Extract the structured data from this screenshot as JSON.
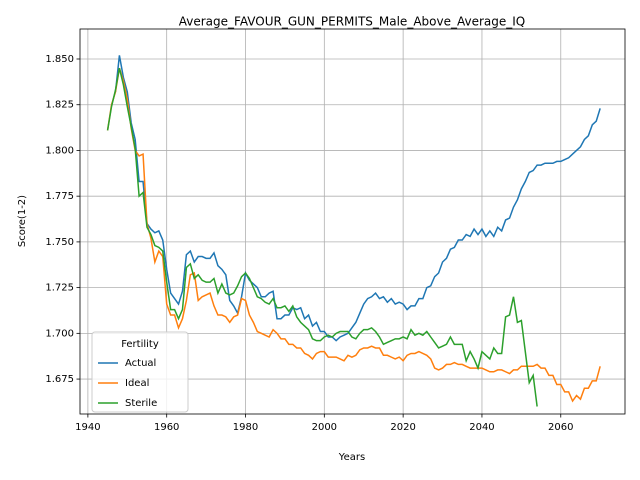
{
  "chart_data": {
    "type": "line",
    "title": "Average_FAVOUR_GUN_PERMITS_Male_Above_Average_IQ",
    "x_label": "Years",
    "y_label": "Score(1-2)",
    "legend_title": "Fertility",
    "legend": "lower left",
    "grid": true,
    "xlim": [
      1938,
      2076.3
    ],
    "ylim": [
      1.6559,
      1.8664
    ],
    "xticks": [
      1940,
      1960,
      1980,
      2000,
      2020,
      2040,
      2060
    ],
    "yticks": [
      1.675,
      {
        "value": 1.7,
        "label": "1.700"
      },
      1.725,
      {
        "value": 1.75,
        "label": "1.750"
      },
      1.775,
      {
        "value": 1.8,
        "label": "1.800"
      },
      1.825,
      {
        "value": 1.85,
        "label": "1.850"
      }
    ],
    "x": [
      1945,
      1946,
      1947,
      1948,
      1949,
      1950,
      1951,
      1952,
      1953,
      1954,
      1955,
      1956,
      1957,
      1958,
      1959,
      1960,
      1961,
      1962,
      1963,
      1964,
      1965,
      1966,
      1967,
      1968,
      1969,
      1970,
      1971,
      1972,
      1973,
      1974,
      1975,
      1976,
      1977,
      1978,
      1979,
      1980,
      1981,
      1982,
      1983,
      1984,
      1985,
      1986,
      1987,
      1988,
      1989,
      1990,
      1991,
      1992,
      1993,
      1994,
      1995,
      1996,
      1997,
      1998,
      1999,
      2000,
      2001,
      2002,
      2003,
      2004,
      2005,
      2006,
      2007,
      2008,
      2009,
      2010,
      2011,
      2012,
      2013,
      2014,
      2015,
      2016,
      2017,
      2018,
      2019,
      2020,
      2021,
      2022,
      2023,
      2024,
      2025,
      2026,
      2027,
      2028,
      2029,
      2030,
      2031,
      2032,
      2033,
      2034,
      2035,
      2036,
      2037,
      2038,
      2039,
      2040,
      2041,
      2042,
      2043,
      2044,
      2045,
      2046,
      2047,
      2048,
      2049,
      2050,
      2051,
      2052,
      2053,
      2054,
      2055,
      2056,
      2057,
      2058,
      2059,
      2060,
      2061,
      2062,
      2063,
      2064,
      2065,
      2066,
      2067,
      2068,
      2069,
      2070
    ],
    "series": [
      {
        "name": "Actual",
        "color": "#1f77b4",
        "values": [
          null,
          null,
          1.832,
          1.852,
          1.84,
          1.832,
          1.815,
          1.806,
          1.783,
          1.783,
          1.76,
          1.757,
          1.755,
          1.756,
          1.751,
          1.735,
          1.722,
          1.719,
          1.716,
          1.723,
          1.743,
          1.745,
          1.739,
          1.742,
          1.742,
          1.741,
          1.741,
          1.744,
          1.737,
          1.735,
          1.732,
          1.718,
          1.715,
          1.711,
          1.72,
          1.733,
          1.729,
          1.727,
          1.725,
          1.72,
          1.72,
          1.722,
          1.723,
          1.708,
          1.708,
          1.71,
          1.71,
          1.714,
          1.713,
          1.714,
          1.708,
          1.71,
          1.704,
          1.706,
          1.701,
          1.701,
          1.698,
          1.698,
          1.696,
          1.698,
          1.699,
          1.7,
          1.703,
          1.706,
          1.711,
          1.716,
          1.719,
          1.72,
          1.722,
          1.719,
          1.72,
          1.717,
          1.719,
          1.716,
          1.717,
          1.716,
          1.713,
          1.715,
          1.715,
          1.719,
          1.719,
          1.725,
          1.726,
          1.731,
          1.733,
          1.739,
          1.741,
          1.746,
          1.747,
          1.751,
          1.751,
          1.754,
          1.753,
          1.757,
          1.754,
          1.757,
          1.753,
          1.756,
          1.753,
          1.758,
          1.756,
          1.762,
          1.763,
          1.769,
          1.773,
          1.779,
          1.783,
          1.788,
          1.789,
          1.792,
          1.792,
          1.793,
          1.793,
          1.793,
          1.794,
          1.794,
          1.795,
          1.796,
          1.798,
          1.8,
          1.802,
          1.806,
          1.808,
          1.814,
          1.816,
          1.823
        ]
      },
      {
        "name": "Ideal",
        "color": "#ff7f0e",
        "values": [
          1.811,
          1.825,
          1.832,
          1.845,
          1.838,
          1.828,
          1.812,
          1.8,
          1.797,
          1.798,
          1.76,
          1.752,
          1.739,
          1.745,
          1.742,
          1.716,
          1.71,
          1.71,
          1.703,
          1.708,
          1.718,
          1.732,
          1.733,
          1.718,
          1.72,
          1.721,
          1.722,
          1.715,
          1.71,
          1.71,
          1.709,
          1.706,
          1.709,
          1.71,
          1.719,
          1.718,
          1.71,
          1.706,
          1.701,
          1.7,
          1.699,
          1.698,
          1.702,
          1.7,
          1.697,
          1.697,
          1.694,
          1.694,
          1.692,
          1.692,
          1.689,
          1.688,
          1.686,
          1.689,
          1.69,
          1.69,
          1.687,
          1.687,
          1.687,
          1.686,
          1.685,
          1.688,
          1.687,
          1.688,
          1.691,
          1.692,
          1.692,
          1.693,
          1.692,
          1.692,
          1.688,
          1.688,
          1.687,
          1.686,
          1.687,
          1.685,
          1.688,
          1.689,
          1.689,
          1.69,
          1.689,
          1.688,
          1.686,
          1.681,
          1.68,
          1.681,
          1.683,
          1.683,
          1.684,
          1.683,
          1.683,
          1.682,
          1.681,
          1.681,
          1.681,
          1.681,
          1.68,
          1.679,
          1.679,
          1.68,
          1.68,
          1.679,
          1.678,
          1.68,
          1.68,
          1.682,
          1.682,
          1.682,
          1.682,
          1.683,
          1.681,
          1.681,
          1.677,
          1.677,
          1.672,
          1.672,
          1.668,
          1.668,
          1.663,
          1.666,
          1.664,
          1.67,
          1.67,
          1.674,
          1.674,
          1.682
        ]
      },
      {
        "name": "Sterile",
        "color": "#2ca02c",
        "values": [
          1.811,
          1.824,
          1.833,
          1.845,
          1.836,
          1.824,
          1.813,
          1.801,
          1.775,
          1.777,
          1.758,
          1.754,
          1.748,
          1.747,
          1.745,
          1.728,
          1.713,
          1.713,
          1.708,
          1.713,
          1.736,
          1.738,
          1.73,
          1.732,
          1.729,
          1.728,
          1.728,
          1.73,
          1.722,
          1.727,
          1.722,
          1.721,
          1.722,
          1.726,
          1.731,
          1.733,
          1.73,
          1.725,
          1.72,
          1.719,
          1.717,
          1.716,
          1.719,
          1.714,
          1.714,
          1.715,
          1.712,
          1.715,
          1.709,
          1.706,
          1.704,
          1.702,
          1.697,
          1.696,
          1.696,
          1.698,
          1.699,
          1.698,
          1.7,
          1.701,
          1.701,
          1.701,
          1.698,
          1.697,
          1.7,
          1.702,
          1.702,
          1.703,
          1.701,
          1.698,
          1.694,
          1.695,
          1.696,
          1.697,
          1.697,
          1.698,
          1.697,
          1.702,
          1.699,
          1.7,
          1.699,
          1.701,
          1.698,
          1.695,
          1.692,
          1.693,
          1.694,
          1.698,
          1.694,
          1.694,
          1.694,
          1.685,
          1.69,
          1.686,
          1.681,
          1.69,
          1.688,
          1.686,
          1.692,
          1.689,
          1.689,
          1.709,
          1.71,
          1.72,
          1.706,
          1.707,
          1.69,
          1.673,
          1.677,
          1.66,
          null,
          null,
          null,
          null,
          null,
          null,
          null,
          null,
          null,
          null,
          null,
          null,
          null,
          null,
          null,
          null
        ]
      }
    ]
  }
}
